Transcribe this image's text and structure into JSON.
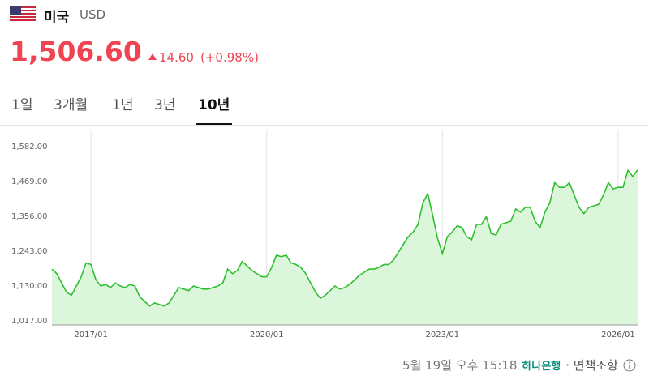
{
  "header": {
    "country": "미국",
    "currency": "USD",
    "price": "1,506.60",
    "change": "14.60",
    "change_pct": "(+0.98%)"
  },
  "tabs": {
    "items": [
      "1일",
      "3개월",
      "1년",
      "3년",
      "10년"
    ],
    "active": 4
  },
  "chart_data": {
    "type": "area",
    "color": "#2fbf2f",
    "fill": "#dcf6dc",
    "categories": [
      "2016/05",
      "2016/06",
      "2016/07",
      "2016/08",
      "2016/09",
      "2016/10",
      "2016/11",
      "2016/12",
      "2017/01",
      "2017/02",
      "2017/03",
      "2017/04",
      "2017/05",
      "2017/06",
      "2017/07",
      "2017/08",
      "2017/09",
      "2017/10",
      "2017/11",
      "2017/12",
      "2018/01",
      "2018/02",
      "2018/03",
      "2018/04",
      "2018/05",
      "2018/06",
      "2018/07",
      "2018/08",
      "2018/09",
      "2018/10",
      "2018/11",
      "2018/12",
      "2019/01",
      "2019/02",
      "2019/03",
      "2019/04",
      "2019/05",
      "2019/06",
      "2019/07",
      "2019/08",
      "2019/09",
      "2019/10",
      "2019/11",
      "2019/12",
      "2020/01",
      "2020/02",
      "2020/03",
      "2020/04",
      "2020/05",
      "2020/06",
      "2020/07",
      "2020/08",
      "2020/09",
      "2020/10",
      "2020/11",
      "2020/12",
      "2021/01",
      "2021/02",
      "2021/03",
      "2021/04",
      "2021/05",
      "2021/06",
      "2021/07",
      "2021/08",
      "2021/09",
      "2021/10",
      "2021/11",
      "2021/12",
      "2022/01",
      "2022/02",
      "2022/03",
      "2022/04",
      "2022/05",
      "2022/06",
      "2022/07",
      "2022/08",
      "2022/09",
      "2022/10",
      "2022/11",
      "2022/12",
      "2023/01",
      "2023/02",
      "2023/03",
      "2023/04",
      "2023/05",
      "2023/06",
      "2023/07",
      "2023/08",
      "2023/09",
      "2023/10",
      "2023/11",
      "2023/12",
      "2024/01",
      "2024/02",
      "2024/03",
      "2024/04",
      "2024/05",
      "2024/06",
      "2024/07",
      "2024/08",
      "2024/09",
      "2024/10",
      "2024/11",
      "2024/12",
      "2025/01",
      "2025/02",
      "2025/03",
      "2025/04",
      "2025/05",
      "2025/06",
      "2025/07",
      "2025/08",
      "2025/09",
      "2025/10",
      "2025/11",
      "2025/12",
      "2026/01",
      "2026/02",
      "2026/03",
      "2026/04",
      "2026/05"
    ],
    "values": [
      1185,
      1170,
      1140,
      1110,
      1100,
      1130,
      1160,
      1205,
      1200,
      1150,
      1130,
      1135,
      1125,
      1140,
      1130,
      1125,
      1135,
      1130,
      1095,
      1080,
      1065,
      1075,
      1070,
      1065,
      1075,
      1100,
      1125,
      1120,
      1115,
      1130,
      1125,
      1120,
      1120,
      1125,
      1130,
      1140,
      1185,
      1170,
      1180,
      1210,
      1195,
      1180,
      1170,
      1160,
      1160,
      1190,
      1230,
      1225,
      1230,
      1205,
      1200,
      1190,
      1170,
      1140,
      1110,
      1090,
      1100,
      1115,
      1130,
      1120,
      1125,
      1135,
      1150,
      1165,
      1175,
      1185,
      1185,
      1190,
      1200,
      1200,
      1215,
      1240,
      1265,
      1290,
      1305,
      1330,
      1400,
      1430,
      1360,
      1285,
      1235,
      1290,
      1305,
      1325,
      1320,
      1290,
      1280,
      1330,
      1330,
      1355,
      1300,
      1295,
      1330,
      1335,
      1340,
      1380,
      1370,
      1385,
      1385,
      1340,
      1320,
      1370,
      1400,
      1465,
      1450,
      1450,
      1465,
      1425,
      1385,
      1365,
      1385,
      1390,
      1395,
      1425,
      1465,
      1445,
      1450,
      1450,
      1505,
      1485,
      1506.6
    ],
    "ylim": [
      1017,
      1582
    ],
    "yticks": [
      {
        "value": 1017,
        "label": "1,017.00"
      },
      {
        "value": 1130,
        "label": "1,130.00"
      },
      {
        "value": 1243,
        "label": "1,243.00"
      },
      {
        "value": 1356,
        "label": "1,356.00"
      },
      {
        "value": 1469,
        "label": "1,469.00"
      },
      {
        "value": 1582,
        "label": "1,582.00"
      }
    ],
    "xticks": [
      "2017/01",
      "2020/01",
      "2023/01",
      "2026/01"
    ],
    "grid": true
  },
  "footer": {
    "timestamp": "5월 19일 오후 15:18",
    "source": "하나은행",
    "disclaimer": "· 면책조항"
  }
}
